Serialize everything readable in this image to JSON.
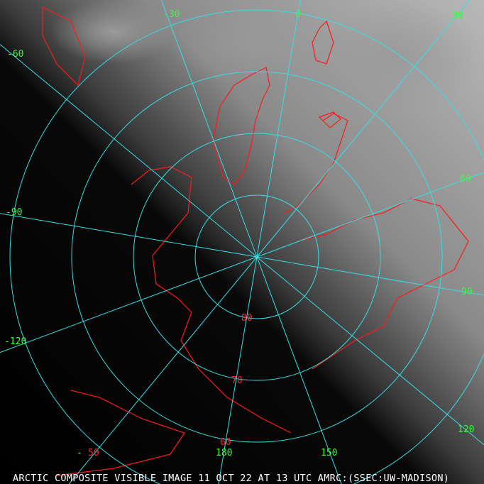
{
  "caption": "ARCTIC COMPOSITE VISIBLE IMAGE 11 OCT 22 AT 13 UTC AMRC:(SSEC:UW-MADISON)",
  "colors": {
    "grid": "#33e0e8",
    "coastline": "#ff1a1a",
    "longitude_label": "#33ff33",
    "latitude_label": "#ff2a2a",
    "caption": "#ffffff"
  },
  "projection": "north polar stereographic",
  "latitude_circles": [
    80,
    70,
    60,
    50
  ],
  "longitude_meridians": [
    -150,
    -120,
    -90,
    -60,
    -30,
    0,
    30,
    60,
    90,
    120,
    150,
    180
  ],
  "longitude_labels": [
    "-30",
    "0",
    "30",
    "60",
    "90",
    "120",
    "150",
    "180",
    "-120",
    "-90",
    "-60",
    "-"
  ],
  "latitude_labels": [
    "80",
    "70",
    "60",
    "50"
  ]
}
